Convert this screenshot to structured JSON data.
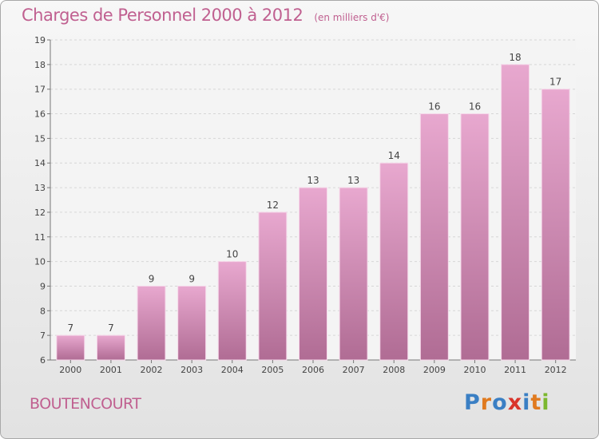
{
  "title": "Charges de Personnel 2000 à 2012",
  "subtitle": "(en milliers d'€)",
  "commune": "BOUTENCOURT",
  "logo": {
    "text": "Proxiti",
    "colors": [
      "#3a7fc4",
      "#e07a1f",
      "#3a7fc4",
      "#d9342b",
      "#3a7fc4",
      "#e07a1f",
      "#7cb82f"
    ]
  },
  "colors": {
    "bar_top": "#e8a8cf",
    "bar_bottom": "#b06c94",
    "title": "#c06090"
  },
  "chart_data": {
    "type": "bar",
    "title": "Charges de Personnel 2000 à 2012",
    "subtitle": "(en milliers d'€)",
    "categories": [
      "2000",
      "2001",
      "2002",
      "2003",
      "2004",
      "2005",
      "2006",
      "2007",
      "2008",
      "2009",
      "2010",
      "2011",
      "2012"
    ],
    "values": [
      7,
      7,
      9,
      9,
      10,
      12,
      13,
      13,
      14,
      16,
      16,
      18,
      17
    ],
    "ylim": [
      6,
      19
    ],
    "yticks": [
      6,
      7,
      8,
      9,
      10,
      11,
      12,
      13,
      14,
      15,
      16,
      17,
      18,
      19
    ],
    "grid": true
  }
}
